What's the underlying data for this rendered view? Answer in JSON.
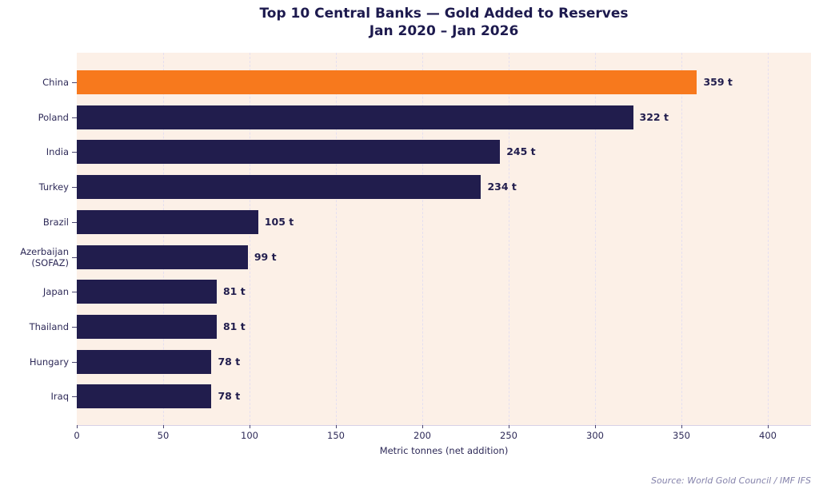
{
  "title": {
    "line1": "Top 10 Central Banks — Gold Added to Reserves",
    "line2": "Jan 2020 – Jan 2026"
  },
  "chart_data": {
    "type": "bar",
    "orientation": "horizontal",
    "title": "Top 10 Central Banks — Gold Added to Reserves Jan 2020 – Jan 2026",
    "categories": [
      "China",
      "Poland",
      "India",
      "Turkey",
      "Brazil",
      "Azerbaijan\n(SOFAZ)",
      "Japan",
      "Thailand",
      "Hungary",
      "Iraq"
    ],
    "values": [
      359,
      322,
      245,
      234,
      105,
      99,
      81,
      81,
      78,
      78
    ],
    "value_labels": [
      "359 t",
      "322 t",
      "245 t",
      "234 t",
      "105 t",
      "99 t",
      "81 t",
      "81 t",
      "78 t",
      "78 t"
    ],
    "xlabel": "Metric tonnes (net addition)",
    "xlim": [
      0,
      425
    ],
    "xticks": [
      0,
      50,
      100,
      150,
      200,
      250,
      300,
      350,
      400
    ],
    "grid": {
      "axis": "x",
      "style": "dashed",
      "on": true
    },
    "legend": "none",
    "highlight_index": 0,
    "colors": {
      "bar": "#211d4d",
      "highlight_bar": "#f7791d",
      "plot_background": "#fcf0e7",
      "gridline": "#e5dff0",
      "axis_spine": "#d7d1e6",
      "tick_mark": "#4a4670",
      "title_text": "#1d1a4e",
      "label_text": "#2e2a58",
      "value_text": "#211d4d",
      "source_text": "#8583ab"
    }
  },
  "source_note": "Source: World Gold Council / IMF IFS"
}
